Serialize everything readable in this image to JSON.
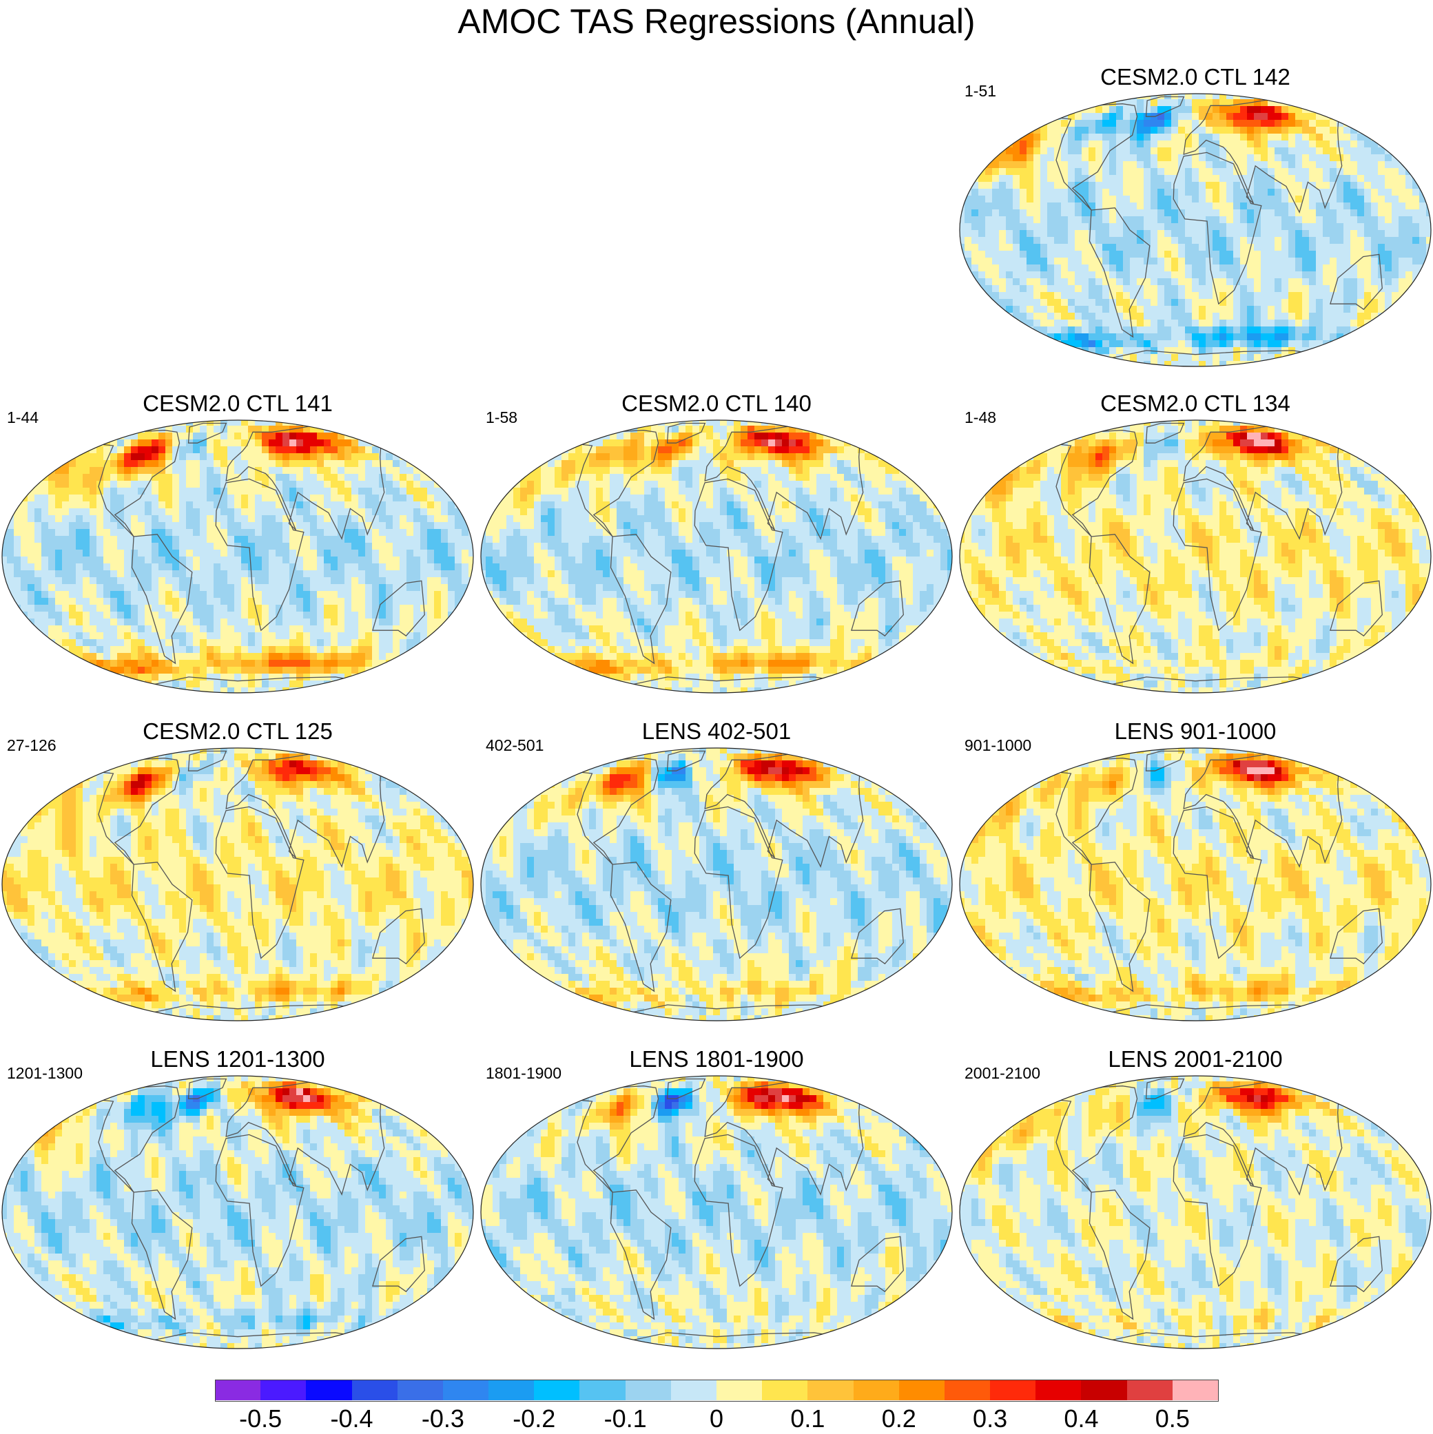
{
  "title": "AMOC TAS Regressions (Annual)",
  "projection": "Robinson",
  "panels": [
    {
      "title": "CESM2.0 CTL 142",
      "range": "1-51",
      "pattern": {
        "nh_eurasia": 0.45,
        "nh_namerica": -0.15,
        "natl": -0.35,
        "tropics": -0.05,
        "so": -0.2,
        "npac": 0.2
      }
    },
    {
      "title": "CESM2.0 CTL 141",
      "range": "1-44",
      "pattern": {
        "nh_eurasia": 0.5,
        "nh_namerica": 0.4,
        "natl": -0.1,
        "tropics": -0.05,
        "so": 0.25,
        "npac": 0.15
      }
    },
    {
      "title": "CESM2.0 CTL 140",
      "range": "1-58",
      "pattern": {
        "nh_eurasia": 0.5,
        "nh_namerica": 0.2,
        "natl": 0.3,
        "tropics": -0.05,
        "so": 0.2,
        "npac": 0.1
      }
    },
    {
      "title": "CESM2.0 CTL 134",
      "range": "1-48",
      "pattern": {
        "nh_eurasia": 0.55,
        "nh_namerica": 0.3,
        "natl": -0.1,
        "tropics": 0.05,
        "so": 0.05,
        "npac": 0.1
      }
    },
    {
      "title": "CESM2.0 CTL 125",
      "range": "27-126",
      "pattern": {
        "nh_eurasia": 0.4,
        "nh_namerica": 0.35,
        "natl": -0.1,
        "tropics": 0.05,
        "so": 0.15,
        "npac": 0.1
      }
    },
    {
      "title": "LENS 402-501",
      "range": "402-501",
      "pattern": {
        "nh_eurasia": 0.5,
        "nh_namerica": 0.35,
        "natl": -0.3,
        "tropics": -0.05,
        "so": 0.1,
        "npac": 0.05
      }
    },
    {
      "title": "LENS 901-1000",
      "range": "901-1000",
      "pattern": {
        "nh_eurasia": 0.55,
        "nh_namerica": 0.2,
        "natl": -0.15,
        "tropics": 0.05,
        "so": 0.15,
        "npac": 0.1
      }
    },
    {
      "title": "LENS 1201-1300",
      "range": "1201-1300",
      "pattern": {
        "nh_eurasia": 0.5,
        "nh_namerica": -0.2,
        "natl": -0.3,
        "tropics": -0.05,
        "so": -0.1,
        "npac": 0.1
      }
    },
    {
      "title": "LENS 1801-1900",
      "range": "1801-1900",
      "pattern": {
        "nh_eurasia": 0.55,
        "nh_namerica": 0.2,
        "natl": -0.45,
        "tropics": -0.05,
        "so": 0.0,
        "npac": 0.0
      }
    },
    {
      "title": "LENS 2001-2100",
      "range": "2001-2100",
      "pattern": {
        "nh_eurasia": 0.45,
        "nh_namerica": 0.1,
        "natl": -0.2,
        "tropics": 0.0,
        "so": 0.05,
        "npac": 0.1
      }
    }
  ],
  "colorbar": {
    "colors": [
      "#8a2be2",
      "#4b1aff",
      "#0a0aff",
      "#2a4fe8",
      "#3a6fe8",
      "#2f86f0",
      "#1b9cf2",
      "#00bfff",
      "#56c3f2",
      "#9cd3f0",
      "#c7e7f7",
      "#fff7a8",
      "#ffe54f",
      "#ffc33a",
      "#ffab1a",
      "#ff8c00",
      "#ff5a0a",
      "#ff2a0a",
      "#e60000",
      "#c80000",
      "#e04040",
      "#ffb3b8"
    ],
    "tick_labels": [
      "-0.5",
      "-0.4",
      "-0.3",
      "-0.2",
      "-0.1",
      "0",
      "0.1",
      "0.2",
      "0.3",
      "0.4",
      "0.5"
    ]
  }
}
